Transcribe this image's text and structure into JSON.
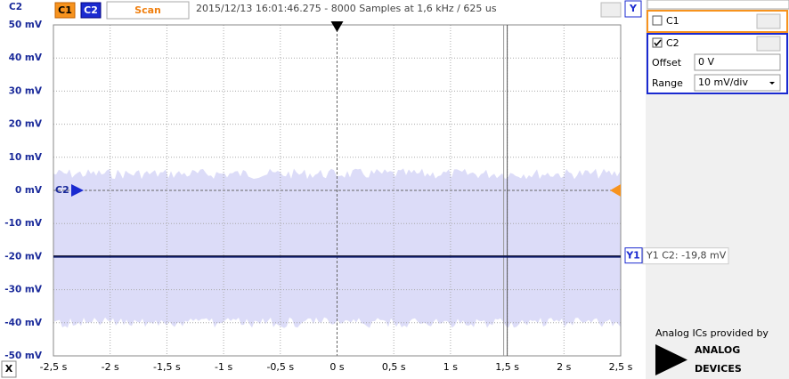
{
  "toolbar": {
    "axis_channel": "C2",
    "channel_buttons": [
      "C1",
      "C2"
    ],
    "scan": "Scan",
    "title": "2015/12/13 16:01:46.275 - 8000 Samples at 1,6 kHz / 625 us",
    "y_button": "Y",
    "x_button": "X"
  },
  "plot": {
    "ylim": [
      -50,
      50
    ],
    "yticks": [
      {
        "value": 50,
        "label": "50 mV"
      },
      {
        "value": 40,
        "label": "40 mV"
      },
      {
        "value": 30,
        "label": "30 mV"
      },
      {
        "value": 20,
        "label": "20 mV"
      },
      {
        "value": 10,
        "label": "10 mV"
      },
      {
        "value": 0,
        "label": "0 mV"
      },
      {
        "value": -10,
        "label": "-10 mV"
      },
      {
        "value": -20,
        "label": "-20 mV"
      },
      {
        "value": -30,
        "label": "-30 mV"
      },
      {
        "value": -40,
        "label": "-40 mV"
      },
      {
        "value": -50,
        "label": "-50 mV"
      }
    ],
    "xlim": [
      -2.5,
      2.5
    ],
    "xticks": [
      {
        "value": -2.5,
        "label": "-2,5 s"
      },
      {
        "value": -2,
        "label": "-2 s"
      },
      {
        "value": -1.5,
        "label": "-1,5 s"
      },
      {
        "value": -1,
        "label": "-1 s"
      },
      {
        "value": -0.5,
        "label": "-0,5 s"
      },
      {
        "value": 0,
        "label": "0 s"
      },
      {
        "value": 0.5,
        "label": "0,5 s"
      },
      {
        "value": 1,
        "label": "1 s"
      },
      {
        "value": 1.5,
        "label": "1,5 s"
      },
      {
        "value": 2,
        "label": "2 s"
      },
      {
        "value": 2.5,
        "label": "2,5 s"
      }
    ],
    "trace": {
      "color": "#0a1a6e",
      "envelope_color": "#dcdcf8",
      "level": -20,
      "envelope_min": -40,
      "envelope_max": 5
    },
    "channel_marker": {
      "label": "C2",
      "value": 0
    },
    "trigger_x": 0,
    "marker_x": 1.5,
    "cursor": {
      "label": "Y1",
      "value": -19.8,
      "readout": "Y1 C2: -19,8 mV"
    }
  },
  "panels": {
    "c1": {
      "name": "C1"
    },
    "c2": {
      "name": "C2",
      "offset_label": "Offset",
      "offset": "0 V",
      "range_label": "Range",
      "range": "10 mV/div"
    }
  },
  "logo": {
    "caption": "Analog ICs provided by",
    "line1": "ANALOG",
    "line2": "DEVICES"
  }
}
